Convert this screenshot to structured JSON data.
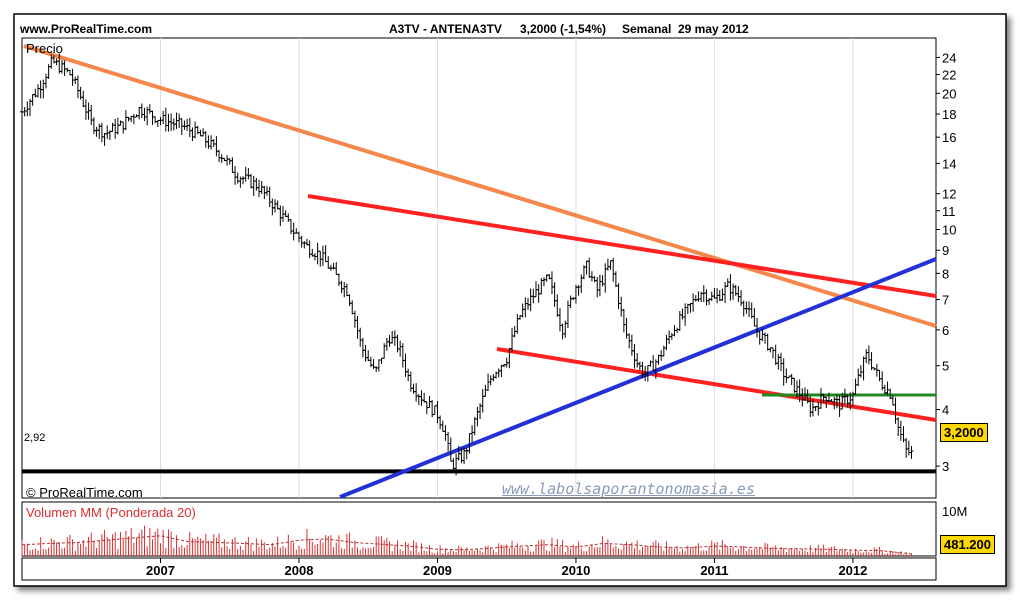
{
  "header": {
    "site": "www.ProRealTime.com",
    "instrument": "A3TV - ANTENA3TV",
    "quote": "3,2000 (-1,54%)",
    "period": "Semanal",
    "date": "29 may 2012"
  },
  "panels": {
    "price_label": "Precio",
    "copyright": "© ProRealTime.com",
    "watermark": "www.labolsaporantonomasia.es",
    "volume_label": "Volumen MM (Ponderada 20)"
  },
  "colors": {
    "background": "#ffffff",
    "price_bars": "#000000",
    "long_trendline": "#f4874b",
    "channel": "#ff2020",
    "support": "#2130d8",
    "short_support": "#1f8a1f",
    "floor": "#000000",
    "volume_bars": "#d83030",
    "volume_ma": "#b03030",
    "badge": "#ffd800"
  },
  "chart_data": [
    {
      "type": "line",
      "title": "Precio",
      "xlim": [
        2006.0,
        2012.6
      ],
      "x_ticks": [
        "2007",
        "2008",
        "2009",
        "2010",
        "2011",
        "2012"
      ],
      "y_ticks": [
        "24",
        "22",
        "20",
        "18",
        "16",
        "14",
        "12",
        "11",
        "10",
        "9",
        "8",
        "7",
        "6",
        "5",
        "4",
        "3"
      ],
      "y_scale": "log",
      "ylim": [
        2.55,
        26.5
      ],
      "series": [
        {
          "x": [
            2006.0,
            2006.12,
            2006.22,
            2006.35,
            2006.5,
            2006.6,
            2006.72,
            2006.85,
            2007.0,
            2007.15,
            2007.3,
            2007.45,
            2007.55,
            2007.7,
            2007.85,
            2007.95,
            2008.05,
            2008.15,
            2008.25,
            2008.35,
            2008.45,
            2008.55,
            2008.65,
            2008.72,
            2008.8,
            2008.9,
            2009.0,
            2009.05,
            2009.1,
            2009.15,
            2009.2,
            2009.3,
            2009.4,
            2009.5,
            2009.6,
            2009.7,
            2009.8,
            2009.9,
            2010.0,
            2010.08,
            2010.15,
            2010.25,
            2010.35,
            2010.45,
            2010.5,
            2010.6,
            2010.7,
            2010.8,
            2010.9,
            2011.0,
            2011.1,
            2011.2,
            2011.3,
            2011.4,
            2011.5,
            2011.6,
            2011.7,
            2011.8,
            2011.9,
            2012.0,
            2012.1,
            2012.2,
            2012.28,
            2012.32,
            2012.38,
            2012.42
          ],
          "values": [
            18.2,
            20.5,
            23.5,
            22.0,
            17.2,
            16.3,
            17.0,
            18.5,
            17.5,
            17.0,
            16.0,
            14.5,
            13.2,
            12.5,
            11.0,
            10.0,
            9.2,
            8.8,
            8.0,
            7.3,
            5.5,
            4.8,
            5.8,
            5.5,
            4.6,
            4.2,
            3.9,
            3.6,
            3.0,
            3.1,
            3.2,
            4.0,
            4.8,
            5.2,
            6.5,
            7.2,
            7.8,
            6.0,
            7.5,
            8.3,
            7.3,
            8.4,
            6.0,
            5.0,
            4.8,
            5.2,
            6.0,
            6.6,
            7.3,
            7.0,
            7.5,
            7.0,
            6.0,
            5.5,
            4.8,
            4.4,
            4.0,
            4.3,
            4.1,
            4.3,
            5.3,
            4.6,
            4.3,
            3.7,
            3.25,
            3.2
          ]
        }
      ],
      "annotations": [
        "2,92",
        "3,2000"
      ],
      "floor_level": 2.92,
      "last_value": 3.2
    },
    {
      "type": "bar",
      "title": "Volumen MM (Ponderada 20)",
      "y_ticks": [
        "10M"
      ],
      "ylim": [
        0,
        12000000
      ],
      "last_value_label": "481.200",
      "series": [
        {
          "x": [
            2006.0,
            2006.2,
            2006.4,
            2006.6,
            2006.8,
            2007.0,
            2007.2,
            2007.4,
            2007.6,
            2007.8,
            2008.0,
            2008.2,
            2008.4,
            2008.6,
            2008.8,
            2009.0,
            2009.2,
            2009.4,
            2009.6,
            2009.8,
            2010.0,
            2010.2,
            2010.4,
            2010.6,
            2010.8,
            2011.0,
            2011.2,
            2011.4,
            2011.6,
            2011.8,
            2012.0,
            2012.2,
            2012.42
          ],
          "values": [
            2500000,
            2800000,
            3000000,
            3500000,
            4000000,
            4500000,
            3200000,
            3000000,
            2800000,
            2500000,
            3500000,
            3800000,
            3000000,
            2600000,
            2200000,
            1500000,
            1400000,
            1800000,
            2200000,
            2500000,
            2000000,
            2800000,
            2500000,
            2000000,
            1800000,
            2200000,
            2000000,
            1700000,
            1600000,
            1500000,
            1300000,
            1200000,
            481200
          ]
        }
      ]
    }
  ]
}
